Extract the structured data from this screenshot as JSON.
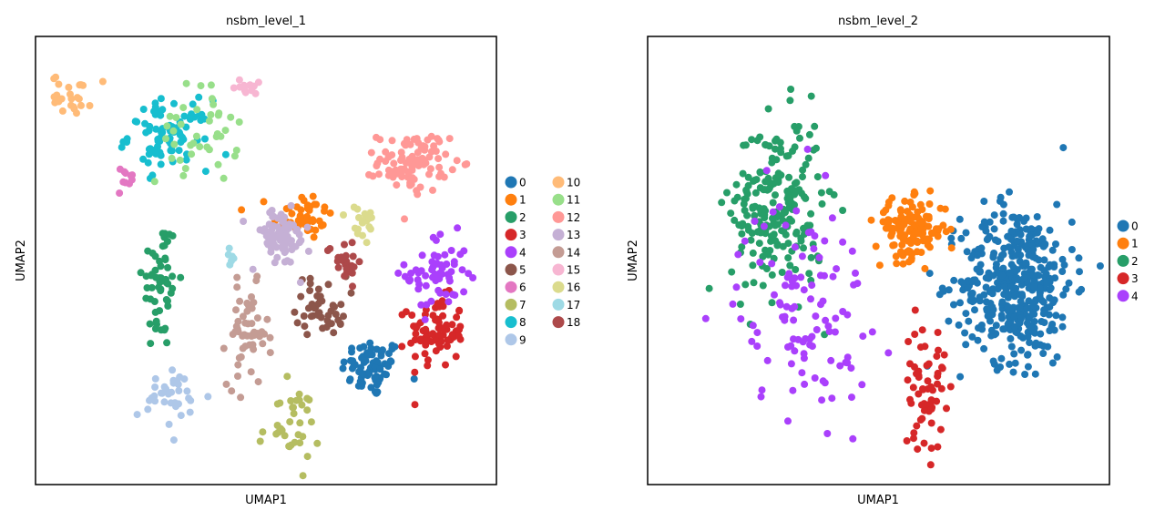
{
  "chart_data": [
    {
      "type": "scatter",
      "title": "nsbm_level_1",
      "xlabel": "UMAP1",
      "ylabel": "UMAP2",
      "xlim": [
        0,
        100
      ],
      "ylim": [
        0,
        100
      ],
      "grid": false,
      "legend_position": "right, two columns",
      "legend": [
        {
          "label": "0",
          "color": "#1f77b4"
        },
        {
          "label": "1",
          "color": "#ff7f0e"
        },
        {
          "label": "2",
          "color": "#279e68"
        },
        {
          "label": "3",
          "color": "#d62728"
        },
        {
          "label": "4",
          "color": "#aa40fc"
        },
        {
          "label": "5",
          "color": "#8c564b"
        },
        {
          "label": "6",
          "color": "#e377c2"
        },
        {
          "label": "7",
          "color": "#b5bd61"
        },
        {
          "label": "8",
          "color": "#17becf"
        },
        {
          "label": "9",
          "color": "#aec7e8"
        },
        {
          "label": "10",
          "color": "#ffbb78"
        },
        {
          "label": "11",
          "color": "#98df8a"
        },
        {
          "label": "12",
          "color": "#ff9896"
        },
        {
          "label": "13",
          "color": "#c5b0d5"
        },
        {
          "label": "14",
          "color": "#c49c94"
        },
        {
          "label": "15",
          "color": "#f7b6d2"
        },
        {
          "label": "16",
          "color": "#dbdb8d"
        },
        {
          "label": "17",
          "color": "#9edae5"
        },
        {
          "label": "18",
          "color": "#ad494a"
        }
      ],
      "clusters": [
        {
          "label": "0",
          "center": [
            73,
            26
          ],
          "spread": [
            6,
            6
          ],
          "n": 70
        },
        {
          "label": "1",
          "center": [
            58,
            60
          ],
          "spread": [
            6,
            5
          ],
          "n": 45
        },
        {
          "label": "2",
          "center": [
            27,
            45
          ],
          "spread": [
            3.5,
            14
          ],
          "n": 55
        },
        {
          "label": "3",
          "center": [
            87,
            34
          ],
          "spread": [
            5.5,
            7
          ],
          "n": 80
        },
        {
          "label": "4",
          "center": [
            87,
            47
          ],
          "spread": [
            6,
            8
          ],
          "n": 60
        },
        {
          "label": "5",
          "center": [
            62,
            40
          ],
          "spread": [
            5,
            6
          ],
          "n": 45
        },
        {
          "label": "6",
          "center": [
            20,
            68
          ],
          "spread": [
            2,
            3
          ],
          "n": 10
        },
        {
          "label": "7",
          "center": [
            55,
            13
          ],
          "spread": [
            6,
            8
          ],
          "n": 35
        },
        {
          "label": "8",
          "center": [
            29,
            78
          ],
          "spread": [
            8,
            7
          ],
          "n": 85
        },
        {
          "label": "9",
          "center": [
            30,
            19
          ],
          "spread": [
            7,
            6
          ],
          "n": 35
        },
        {
          "label": "10",
          "center": [
            8,
            87
          ],
          "spread": [
            4,
            4
          ],
          "n": 25
        },
        {
          "label": "11",
          "center": [
            35,
            78
          ],
          "spread": [
            8,
            10
          ],
          "n": 40
        },
        {
          "label": "12",
          "center": [
            82,
            72
          ],
          "spread": [
            7,
            6
          ],
          "n": 95
        },
        {
          "label": "13",
          "center": [
            53,
            55
          ],
          "spread": [
            6,
            6
          ],
          "n": 70
        },
        {
          "label": "14",
          "center": [
            46,
            33
          ],
          "spread": [
            4,
            10
          ],
          "n": 55
        },
        {
          "label": "15",
          "center": [
            46,
            89
          ],
          "spread": [
            2.5,
            2
          ],
          "n": 12
        },
        {
          "label": "16",
          "center": [
            71,
            58
          ],
          "spread": [
            3,
            4
          ],
          "n": 20
        },
        {
          "label": "17",
          "center": [
            42,
            51
          ],
          "spread": [
            1.5,
            3
          ],
          "n": 6
        },
        {
          "label": "18",
          "center": [
            67,
            50
          ],
          "spread": [
            3.5,
            4
          ],
          "n": 25
        }
      ]
    },
    {
      "type": "scatter",
      "title": "nsbm_level_2",
      "xlabel": "UMAP1",
      "ylabel": "UMAP2",
      "xlim": [
        0,
        100
      ],
      "ylim": [
        0,
        100
      ],
      "grid": false,
      "legend_position": "right",
      "legend": [
        {
          "label": "0",
          "color": "#1f77b4"
        },
        {
          "label": "1",
          "color": "#ff7f0e"
        },
        {
          "label": "2",
          "color": "#279e68"
        },
        {
          "label": "3",
          "color": "#d62728"
        },
        {
          "label": "4",
          "color": "#aa40fc"
        }
      ],
      "clusters": [
        {
          "label": "0",
          "center": [
            80,
            45
          ],
          "spread": [
            11,
            16
          ],
          "n": 420
        },
        {
          "label": "1",
          "center": [
            57,
            57
          ],
          "spread": [
            7,
            6
          ],
          "n": 130
        },
        {
          "label": "2",
          "center": [
            28,
            62
          ],
          "spread": [
            9,
            18
          ],
          "n": 220
        },
        {
          "label": "3",
          "center": [
            60,
            22
          ],
          "spread": [
            4,
            13
          ],
          "n": 60
        },
        {
          "label": "4",
          "center": [
            34,
            40
          ],
          "spread": [
            13,
            22
          ],
          "n": 110
        }
      ]
    }
  ]
}
